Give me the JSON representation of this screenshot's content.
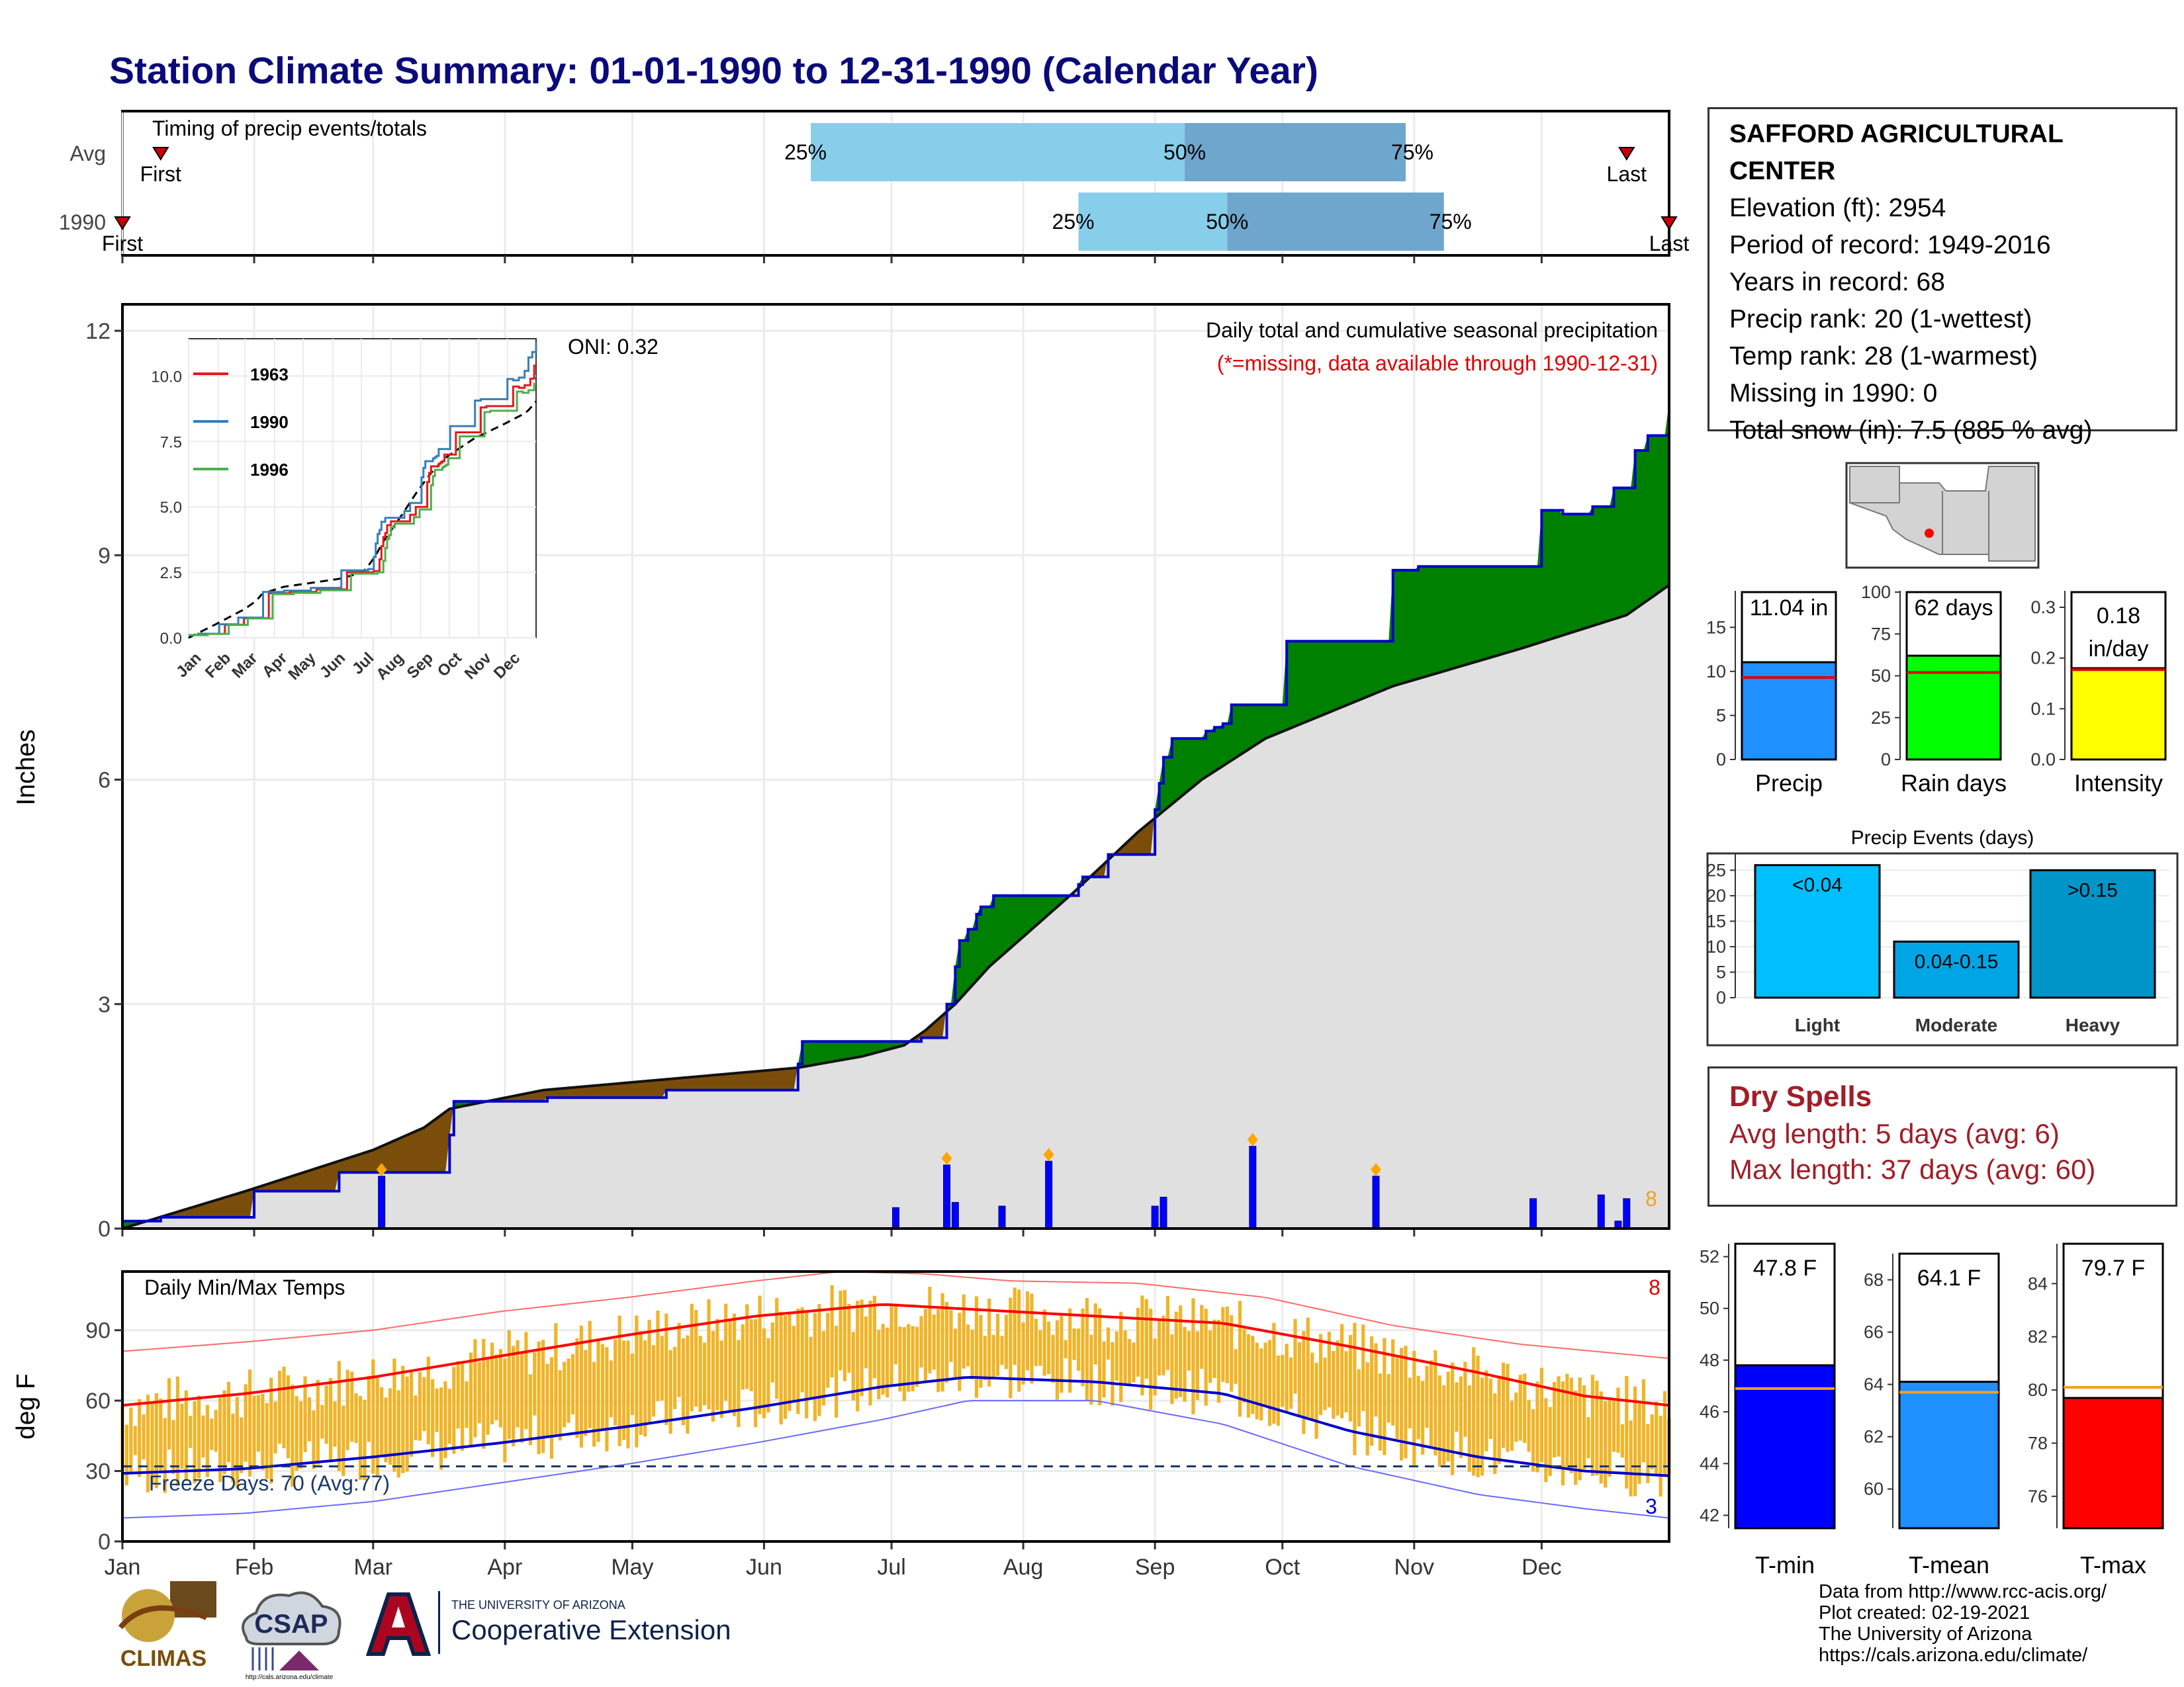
{
  "title": "Station Climate Summary: 01-01-1990 to 12-31-1990 (Calendar Year)",
  "timing_panel": {
    "label": "Timing of precip events/totals",
    "rows": [
      {
        "name": "Avg",
        "first_label": "First",
        "last_label": "Last",
        "first_day": 10,
        "last_day": 355,
        "p25_day": 163,
        "p50_day": 251,
        "p75_day": 303
      },
      {
        "name": "1990",
        "first_label": "First",
        "last_label": "Last",
        "first_day": 1,
        "last_day": 365,
        "p25_day": 226,
        "p50_day": 261,
        "p75_day": 312
      }
    ],
    "pct_labels": [
      "25%",
      "50%",
      "75%"
    ],
    "colors": {
      "lower": "#87ceeb",
      "upper": "#6ea6cd",
      "marker": "#cc0000"
    }
  },
  "precip_panel": {
    "ylabel": "Inches",
    "yticks": [
      0,
      3,
      6,
      9,
      12
    ],
    "title": "Daily total and cumulative seasonal precipitation",
    "subtitle": "(*=missing, data available through 1990-12-31)",
    "oni": "ONI: 0.32",
    "count_label": "8",
    "colors": {
      "above": "#008000",
      "below": "#7a4e0a",
      "normal": "#e0e0e0",
      "obs": "#0000cc"
    }
  },
  "inset": {
    "yticks": [
      "0.0",
      "2.5",
      "5.0",
      "7.5",
      "10.0"
    ],
    "months": [
      "Jan",
      "Feb",
      "Mar",
      "Apr",
      "May",
      "Jun",
      "Jul",
      "Aug",
      "Sep",
      "Oct",
      "Nov",
      "Dec"
    ],
    "legend": [
      {
        "name": "1963",
        "color": "#e41a1c"
      },
      {
        "name": "1990",
        "color": "#377eb8"
      },
      {
        "name": "1996",
        "color": "#4daf4a"
      }
    ]
  },
  "temp_panel": {
    "ylabel": "deg F",
    "yticks": [
      0,
      30,
      60,
      90
    ],
    "title": "Daily Min/Max Temps",
    "freeze": "Freeze Days: 70 (Avg:77)",
    "max_count": "8",
    "min_count": "3",
    "freeze_line": 32,
    "colors": {
      "range": "#f0b428",
      "avgmax": "#ff0000",
      "avgmin": "#0000cc"
    }
  },
  "months": [
    "Jan",
    "Feb",
    "Mar",
    "Apr",
    "May",
    "Jun",
    "Jul",
    "Aug",
    "Sep",
    "Oct",
    "Nov",
    "Dec"
  ],
  "station": {
    "name": "SAFFORD AGRICULTURAL CENTER",
    "lines": [
      "Elevation (ft): 2954",
      "Period of record: 1949-2016",
      "Years in record: 68",
      "Precip rank: 20 (1-wettest)",
      "Temp rank: 28 (1-warmest)",
      "Missing in 1990: 0",
      "Total snow (in): 7.5 (885 % avg)"
    ]
  },
  "mini_bars": [
    {
      "label": "Precip",
      "value": 11.04,
      "avg": 9.3,
      "value_label": "11.04 in",
      "ymax": 19,
      "yticks": [
        0,
        5,
        10,
        15
      ],
      "color": "#1e90ff"
    },
    {
      "label": "Rain days",
      "value": 62,
      "avg": 52,
      "value_label": "62 days",
      "ymax": 100,
      "yticks": [
        0,
        25,
        50,
        75,
        100
      ],
      "color": "#00ff00"
    },
    {
      "label": "Intensity",
      "value": 0.18,
      "avg": 0.177,
      "value_label": "0.18 in/day",
      "ymax": 0.33,
      "yticks": [
        "0.0",
        "0.1",
        "0.2",
        "0.3"
      ],
      "color": "#ffff00"
    }
  ],
  "events": {
    "title": "Precip Events (days)",
    "yticks": [
      0,
      5,
      10,
      15,
      20,
      25
    ],
    "bars": [
      {
        "cat": "Light",
        "label": "<0.04",
        "value": 26,
        "color": "#00bfff"
      },
      {
        "cat": "Moderate",
        "label": "0.04-0.15",
        "value": 11,
        "color": "#00a5e6"
      },
      {
        "cat": "Heavy",
        "label": ">0.15",
        "value": 25,
        "color": "#0095c8"
      }
    ]
  },
  "dry_spells": {
    "title": "Dry Spells",
    "avg_line": "Avg length: 5 days (avg: 6)",
    "max_line": "Max length: 37 days (avg: 60)"
  },
  "temp_bars": [
    {
      "label": "T-min",
      "value": 47.8,
      "avg": 46.9,
      "value_label": "47.8 F",
      "ylim": [
        41.5,
        52.5
      ],
      "yticks": [
        42,
        44,
        46,
        48,
        50,
        52
      ],
      "color": "#0000ff"
    },
    {
      "label": "T-mean",
      "value": 64.1,
      "avg": 63.7,
      "value_label": "64.1 F",
      "ylim": [
        58.5,
        69
      ],
      "yticks": [
        60,
        62,
        64,
        66,
        68
      ],
      "color": "#1e90ff"
    },
    {
      "label": "T-max",
      "value": 79.7,
      "avg": 80.1,
      "value_label": "79.7 F",
      "ylim": [
        74.8,
        85.5
      ],
      "yticks": [
        76,
        78,
        80,
        82,
        84
      ],
      "color": "#ff0000"
    }
  ],
  "credits": [
    "Data from http://www.rcc-acis.org/",
    "Plot created: 02-19-2021",
    "The University of Arizona",
    "https://cals.arizona.edu/climate/"
  ],
  "logos": {
    "climas": "CLIMAS",
    "csap": "CSAP",
    "csap_url": "http://cals.arizona.edu/climate",
    "ua_small": "THE UNIVERSITY OF ARIZONA",
    "ua_big": "Cooperative Extension"
  },
  "chart_data": [
    {
      "type": "area",
      "title": "Daily total and cumulative seasonal precipitation",
      "ylabel": "Inches",
      "ylim": [
        0,
        12
      ],
      "x_units": "day of year",
      "cumulative_observed": {
        "x": [
          1,
          10,
          32,
          52,
          78,
          79,
          101,
          129,
          160,
          161,
          189,
          195,
          197,
          198,
          200,
          202,
          203,
          206,
          210,
          226,
          227,
          233,
          243,
          244,
          245,
          246,
          248,
          256,
          258,
          260,
          262,
          275,
          300,
          306,
          335,
          340,
          347,
          352,
          357,
          360,
          365
        ],
        "y": [
          0.1,
          0.15,
          0.5,
          0.75,
          1.25,
          1.7,
          1.75,
          1.85,
          2.2,
          2.5,
          2.55,
          3.0,
          3.5,
          3.85,
          4.0,
          4.2,
          4.3,
          4.45,
          4.45,
          4.6,
          4.7,
          5.0,
          5.0,
          5.6,
          5.95,
          6.3,
          6.55,
          6.65,
          6.7,
          6.75,
          7.0,
          7.85,
          8.8,
          8.85,
          9.6,
          9.55,
          9.65,
          9.9,
          10.4,
          10.6,
          11.04
        ]
      },
      "cumulative_average": {
        "x": [
          1,
          30,
          60,
          72,
          78,
          100,
          130,
          160,
          175,
          185,
          190,
          197,
          205,
          215,
          225,
          240,
          255,
          270,
          300,
          330,
          355,
          365
        ],
        "y": [
          0.0,
          0.5,
          1.05,
          1.35,
          1.6,
          1.85,
          2.0,
          2.15,
          2.3,
          2.45,
          2.65,
          3.0,
          3.5,
          4.0,
          4.5,
          5.3,
          6.0,
          6.55,
          7.25,
          7.75,
          8.2,
          8.6
        ]
      },
      "daily_bars": {
        "x": [
          62,
          183,
          195,
          197,
          208,
          219,
          244,
          246,
          267,
          296,
          333,
          349,
          353,
          355
        ],
        "y": [
          0.7,
          0.28,
          0.85,
          0.35,
          0.3,
          0.9,
          0.3,
          0.42,
          1.1,
          0.7,
          0.4,
          0.45,
          0.1,
          0.4
        ]
      }
    },
    {
      "type": "line",
      "title": "Daily Min/Max Temps",
      "ylabel": "deg F",
      "ylim": [
        0,
        115
      ],
      "x_units": "day of year",
      "avg_max": {
        "x": [
          1,
          30,
          60,
          90,
          120,
          150,
          180,
          200,
          230,
          260,
          290,
          320,
          345,
          365
        ],
        "y": [
          58,
          63,
          70,
          79,
          88,
          96,
          101,
          99,
          96,
          93,
          83,
          72,
          62,
          58
        ]
      },
      "avg_min": {
        "x": [
          1,
          30,
          60,
          90,
          120,
          150,
          180,
          200,
          230,
          260,
          290,
          320,
          345,
          365
        ],
        "y": [
          29,
          31,
          36,
          42,
          49,
          57,
          66,
          70,
          68,
          63,
          47,
          36,
          30,
          28
        ]
      },
      "record_max": {
        "x": [
          1,
          30,
          60,
          90,
          120,
          150,
          170,
          190,
          210,
          240,
          270,
          300,
          330,
          365
        ],
        "y": [
          81,
          85,
          90,
          98,
          104,
          111,
          115,
          114,
          111,
          110,
          104,
          92,
          84,
          78
        ]
      },
      "record_min": {
        "x": [
          1,
          30,
          60,
          90,
          120,
          150,
          180,
          200,
          230,
          260,
          290,
          320,
          345,
          365
        ],
        "y": [
          10,
          12,
          17,
          25,
          33,
          42,
          52,
          60,
          60,
          50,
          32,
          20,
          14,
          10
        ]
      },
      "freeze_line": 32
    }
  ]
}
